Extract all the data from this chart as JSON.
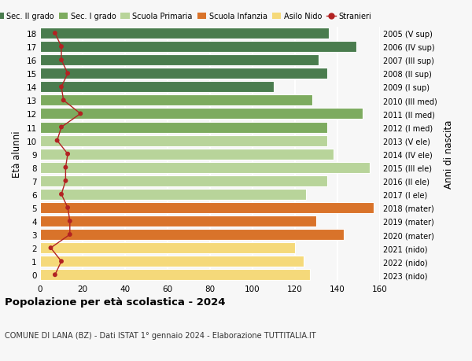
{
  "ages": [
    18,
    17,
    16,
    15,
    14,
    13,
    12,
    11,
    10,
    9,
    8,
    7,
    6,
    5,
    4,
    3,
    2,
    1,
    0
  ],
  "bar_values": [
    136,
    149,
    131,
    135,
    110,
    128,
    152,
    135,
    135,
    138,
    155,
    135,
    125,
    157,
    130,
    143,
    120,
    124,
    127
  ],
  "stranieri": [
    7,
    10,
    10,
    13,
    10,
    11,
    19,
    10,
    8,
    13,
    12,
    12,
    10,
    13,
    14,
    14,
    5,
    10,
    7
  ],
  "right_labels": [
    "2005 (V sup)",
    "2006 (IV sup)",
    "2007 (III sup)",
    "2008 (II sup)",
    "2009 (I sup)",
    "2010 (III med)",
    "2011 (II med)",
    "2012 (I med)",
    "2013 (V ele)",
    "2014 (IV ele)",
    "2015 (III ele)",
    "2016 (II ele)",
    "2017 (I ele)",
    "2018 (mater)",
    "2019 (mater)",
    "2020 (mater)",
    "2021 (nido)",
    "2022 (nido)",
    "2023 (nido)"
  ],
  "bar_colors_by_age": {
    "18": "#4a7c4e",
    "17": "#4a7c4e",
    "16": "#4a7c4e",
    "15": "#4a7c4e",
    "14": "#4a7c4e",
    "13": "#7dab5f",
    "12": "#7dab5f",
    "11": "#7dab5f",
    "10": "#b8d49a",
    "9": "#b8d49a",
    "8": "#b8d49a",
    "7": "#b8d49a",
    "6": "#b8d49a",
    "5": "#d9732a",
    "4": "#d9732a",
    "3": "#d9732a",
    "2": "#f5d97a",
    "1": "#f5d97a",
    "0": "#f5d97a"
  },
  "legend_items": [
    {
      "label": "Sec. II grado",
      "color": "#4a7c4e"
    },
    {
      "label": "Sec. I grado",
      "color": "#7dab5f"
    },
    {
      "label": "Scuola Primaria",
      "color": "#b8d49a"
    },
    {
      "label": "Scuola Infanzia",
      "color": "#d9732a"
    },
    {
      "label": "Asilo Nido",
      "color": "#f5d97a"
    }
  ],
  "stranieri_color": "#b22222",
  "stranieri_label": "Stranieri",
  "ylabel": "Età alunni",
  "right_ylabel": "Anni di nascita",
  "title_bold": "Popolazione per età scolastica - 2024",
  "subtitle": "COMUNE DI LANA (BZ) - Dati ISTAT 1° gennaio 2024 - Elaborazione TUTTITALIA.IT",
  "xlim": [
    0,
    160
  ],
  "xticks": [
    0,
    20,
    40,
    60,
    80,
    100,
    120,
    140,
    160
  ],
  "background": "#f7f7f7",
  "grid_color": "#ffffff"
}
